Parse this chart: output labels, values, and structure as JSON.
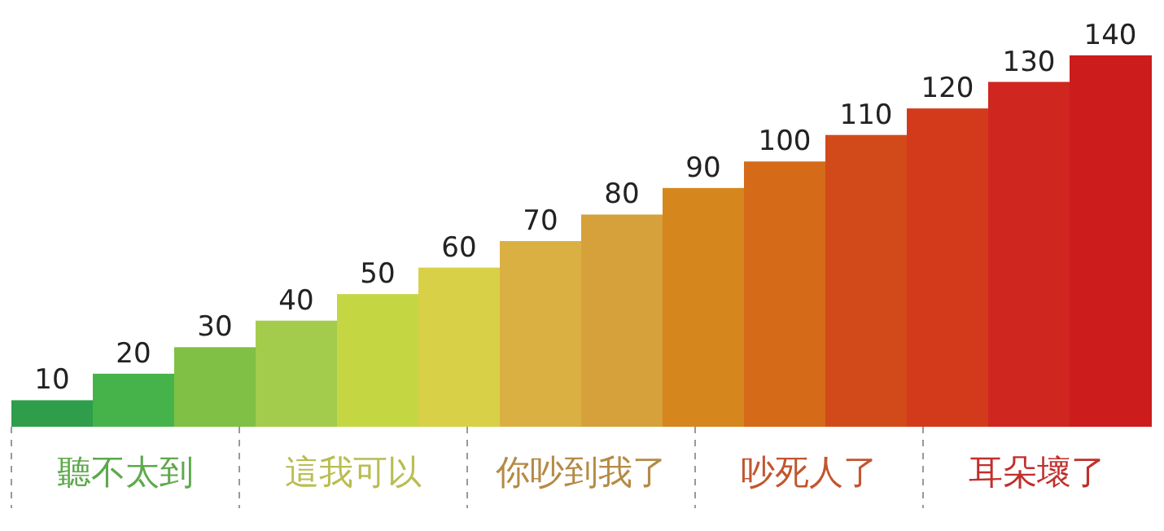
{
  "chart_data": {
    "type": "bar",
    "categories": [
      null,
      null,
      null,
      null,
      null,
      null,
      null,
      null,
      null,
      null,
      null,
      null,
      null,
      null
    ],
    "ylim": [
      0,
      140
    ],
    "data_labels": true,
    "values": [
      10,
      20,
      30,
      40,
      50,
      60,
      70,
      80,
      90,
      100,
      110,
      120,
      130,
      140
    ],
    "colors": [
      "#2e9e4a",
      "#46b34a",
      "#80c044",
      "#a3cc4c",
      "#c4d743",
      "#d8d046",
      "#dbb043",
      "#d6a03a",
      "#d5861c",
      "#d56a18",
      "#d24a1a",
      "#d33a1c",
      "#cf261f",
      "#cc1c1c"
    ],
    "annotations": [
      "聽不太到",
      "這我可以",
      "你吵到我了",
      "吵死人了",
      "耳朵壞了"
    ]
  }
}
